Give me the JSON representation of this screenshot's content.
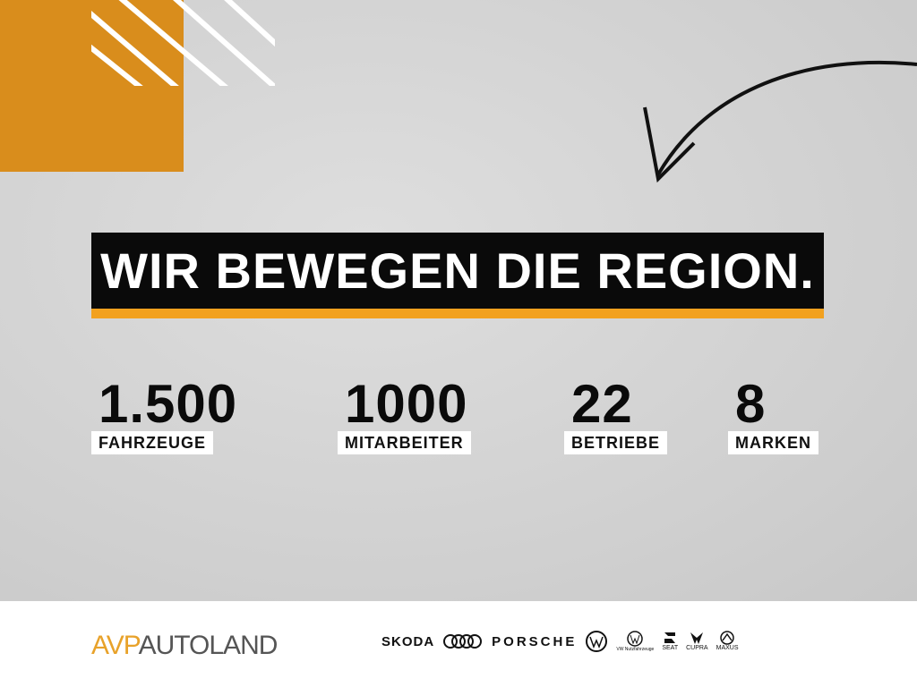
{
  "headline": "WIR BEWEGEN DIE REGION.",
  "stats": [
    {
      "value": "1.500",
      "label": "FAHRZEUGE"
    },
    {
      "value": "1000",
      "label": "MITARBEITER"
    },
    {
      "value": "22",
      "label": "BETRIEBE"
    },
    {
      "value": "8",
      "label": "MARKEN"
    }
  ],
  "footer": {
    "logo_part1": "AVP",
    "logo_part2": "AUTOLAND",
    "brands": [
      "SKODA",
      "AUDI",
      "PORSCHE",
      "VW",
      "VW Nutzfahrzeuge",
      "SEAT",
      "CUPRA",
      "MAXUS"
    ],
    "brand_text": {
      "skoda": "SKODA",
      "porsche": "PORSCHE",
      "seat": "SEAT",
      "cupra": "CUPRA",
      "maxus": "MAXUS"
    }
  },
  "colors": {
    "orange": "#d98d1c",
    "accent": "#f2a11f",
    "black": "#0a0a0a",
    "concrete": "#d6d6d6"
  }
}
